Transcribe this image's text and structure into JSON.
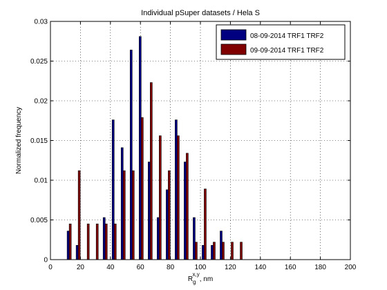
{
  "chart_data": {
    "type": "bar",
    "title": "Individual pSuper datasets / Hela S",
    "xlabel": {
      "main": "R",
      "sub": "g",
      "sup": "x,y",
      "unit": ", nm"
    },
    "ylabel": "Normalized frequency",
    "xlim": [
      0,
      200
    ],
    "ylim": [
      0,
      0.03
    ],
    "xticks": [
      0,
      20,
      40,
      60,
      80,
      100,
      120,
      140,
      160,
      180,
      200
    ],
    "yticks": [
      0,
      0.005,
      0.01,
      0.015,
      0.02,
      0.025,
      0.03
    ],
    "xtick_labels": [
      "0",
      "20",
      "40",
      "60",
      "80",
      "100",
      "120",
      "140",
      "160",
      "180",
      "200"
    ],
    "ytick_labels": [
      "0",
      "0.005",
      "0.01",
      "0.015",
      "0.02",
      "0.025",
      "0.03"
    ],
    "grid": true,
    "legend_position": "top-right",
    "x": [
      12.5,
      18.5,
      24.5,
      30.5,
      36.5,
      42.5,
      48.5,
      54.5,
      60.5,
      66.5,
      72.5,
      78.5,
      84.5,
      90.5,
      96.5,
      102.5,
      108.5,
      114.5,
      120.5,
      126.5
    ],
    "series": [
      {
        "name": "08-09-2014 TRF1 TRF2",
        "color": "#000080",
        "values": [
          0.0036,
          0.0018,
          0,
          0,
          0.0053,
          0.0176,
          0.0141,
          0.0264,
          0.0281,
          0.0123,
          0.0053,
          0.0088,
          0.0176,
          0.0123,
          0.0053,
          0.0018,
          0.0018,
          0.0036,
          0,
          0
        ]
      },
      {
        "name": "09-09-2014 TRF1 TRF2",
        "color": "#800000",
        "values": [
          0.0045,
          0.0112,
          0.0045,
          0.0045,
          0.0045,
          0.0045,
          0.0112,
          0.0112,
          0.0179,
          0.0223,
          0.0156,
          0.0112,
          0.0156,
          0.0134,
          0.0022,
          0.0089,
          0.0022,
          0.0022,
          0.0022,
          0.0022
        ]
      }
    ]
  }
}
